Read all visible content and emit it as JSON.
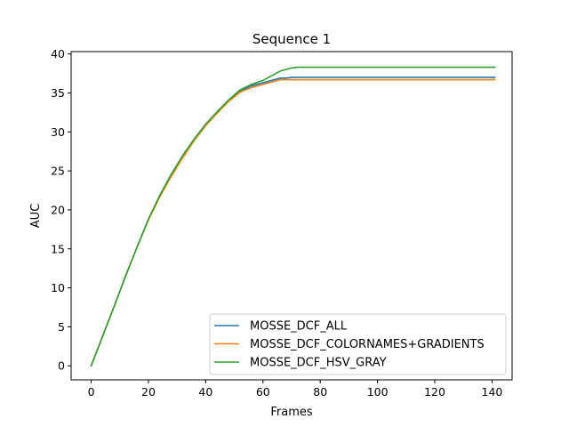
{
  "chart_data": {
    "type": "line",
    "title": "Sequence 1",
    "xlabel": "Frames",
    "ylabel": "AUC",
    "xlim": [
      -7,
      147
    ],
    "ylim": [
      -1.8,
      40.3
    ],
    "xticks": [
      0,
      20,
      40,
      60,
      80,
      100,
      120,
      140
    ],
    "yticks": [
      0,
      5,
      10,
      15,
      20,
      25,
      30,
      35,
      40
    ],
    "grid": false,
    "legend_position": "lower-right",
    "series": [
      {
        "name": "MOSSE_DCF_ALL",
        "color": "#1f77b4",
        "x": [
          0,
          4,
          8,
          12,
          16,
          20,
          24,
          28,
          32,
          36,
          40,
          44,
          48,
          52,
          56,
          60,
          64,
          66,
          68,
          70,
          72,
          80,
          100,
          120,
          141
        ],
        "y": [
          0,
          3.8,
          7.6,
          11.5,
          15.2,
          18.8,
          21.8,
          24.5,
          26.9,
          29.0,
          30.9,
          32.5,
          34.0,
          35.2,
          35.9,
          36.3,
          36.7,
          36.9,
          36.9,
          37.0,
          37.0,
          37.0,
          37.0,
          37.0,
          37.0
        ]
      },
      {
        "name": "MOSSE_DCF_COLORNAMES+GRADIENTS",
        "color": "#ff7f0e",
        "x": [
          0,
          4,
          8,
          12,
          16,
          20,
          24,
          28,
          32,
          36,
          40,
          44,
          48,
          52,
          56,
          60,
          64,
          66,
          68,
          70,
          72,
          80,
          100,
          120,
          141
        ],
        "y": [
          0,
          3.8,
          7.6,
          11.5,
          15.2,
          18.7,
          21.7,
          24.3,
          26.7,
          28.9,
          30.8,
          32.4,
          33.9,
          35.1,
          35.7,
          36.1,
          36.5,
          36.7,
          36.7,
          36.7,
          36.7,
          36.7,
          36.7,
          36.7,
          36.7
        ]
      },
      {
        "name": "MOSSE_DCF_HSV_GRAY",
        "color": "#2ca02c",
        "x": [
          0,
          4,
          8,
          12,
          16,
          20,
          24,
          28,
          32,
          36,
          40,
          44,
          48,
          52,
          56,
          60,
          62,
          64,
          66,
          68,
          70,
          72,
          80,
          100,
          120,
          141
        ],
        "y": [
          0,
          3.8,
          7.6,
          11.5,
          15.2,
          18.8,
          21.9,
          24.6,
          27.0,
          29.1,
          31.0,
          32.6,
          34.1,
          35.4,
          36.1,
          36.6,
          37.0,
          37.4,
          37.8,
          38.0,
          38.2,
          38.3,
          38.3,
          38.3,
          38.3,
          38.3
        ]
      }
    ]
  }
}
